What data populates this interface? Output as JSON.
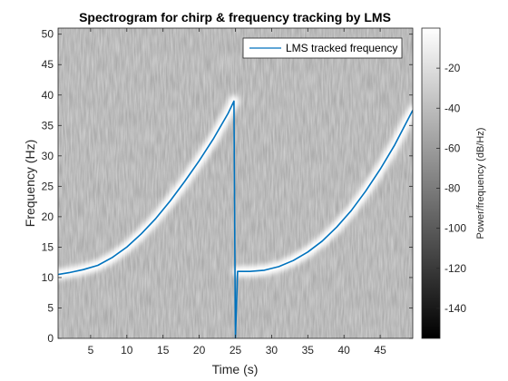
{
  "chart_data": {
    "type": "heatmap",
    "title": "Spectrogram for chirp & frequency tracking by LMS",
    "xlabel": "Time (s)",
    "ylabel": "Frequency (Hz)",
    "xlim": [
      0.5,
      49.5
    ],
    "ylim": [
      0,
      51
    ],
    "x_ticks": [
      5,
      10,
      15,
      20,
      25,
      30,
      35,
      40,
      45
    ],
    "y_ticks": [
      0,
      5,
      10,
      15,
      20,
      25,
      30,
      35,
      40,
      45,
      50
    ],
    "colorbar": {
      "label": "Power/frequency (dB/Hz)",
      "range": [
        -155,
        0
      ],
      "ticks": [
        -140,
        -120,
        -100,
        -80,
        -60,
        -40,
        -20
      ],
      "colormap": "gray"
    },
    "legend": {
      "position": "top-right",
      "entries": [
        "LMS tracked frequency"
      ]
    },
    "series": [
      {
        "name": "LMS tracked frequency",
        "color": "#0072BD",
        "segments": [
          {
            "x": [
              0.5,
              2,
              4,
              6,
              8,
              10,
              12,
              14,
              16,
              18,
              20,
              22,
              24,
              24.8
            ],
            "y": [
              10.5,
              10.8,
              11.3,
              12.0,
              13.3,
              15.0,
              17.2,
              19.7,
              22.6,
              25.8,
              29.2,
              32.9,
              37.0,
              39.0
            ]
          },
          {
            "x": [
              24.8,
              25.0
            ],
            "y": [
              39.0,
              0
            ]
          },
          {
            "x": [
              25.0,
              25.3
            ],
            "y": [
              0,
              11.0
            ]
          },
          {
            "x": [
              25.3,
              27,
              29,
              31,
              33,
              35,
              37,
              39,
              41,
              43,
              45,
              47,
              49.5
            ],
            "y": [
              11.0,
              11.0,
              11.2,
              11.8,
              12.8,
              14.2,
              16.0,
              18.3,
              21.0,
              24.2,
              27.8,
              31.8,
              37.5
            ]
          }
        ]
      }
    ]
  }
}
